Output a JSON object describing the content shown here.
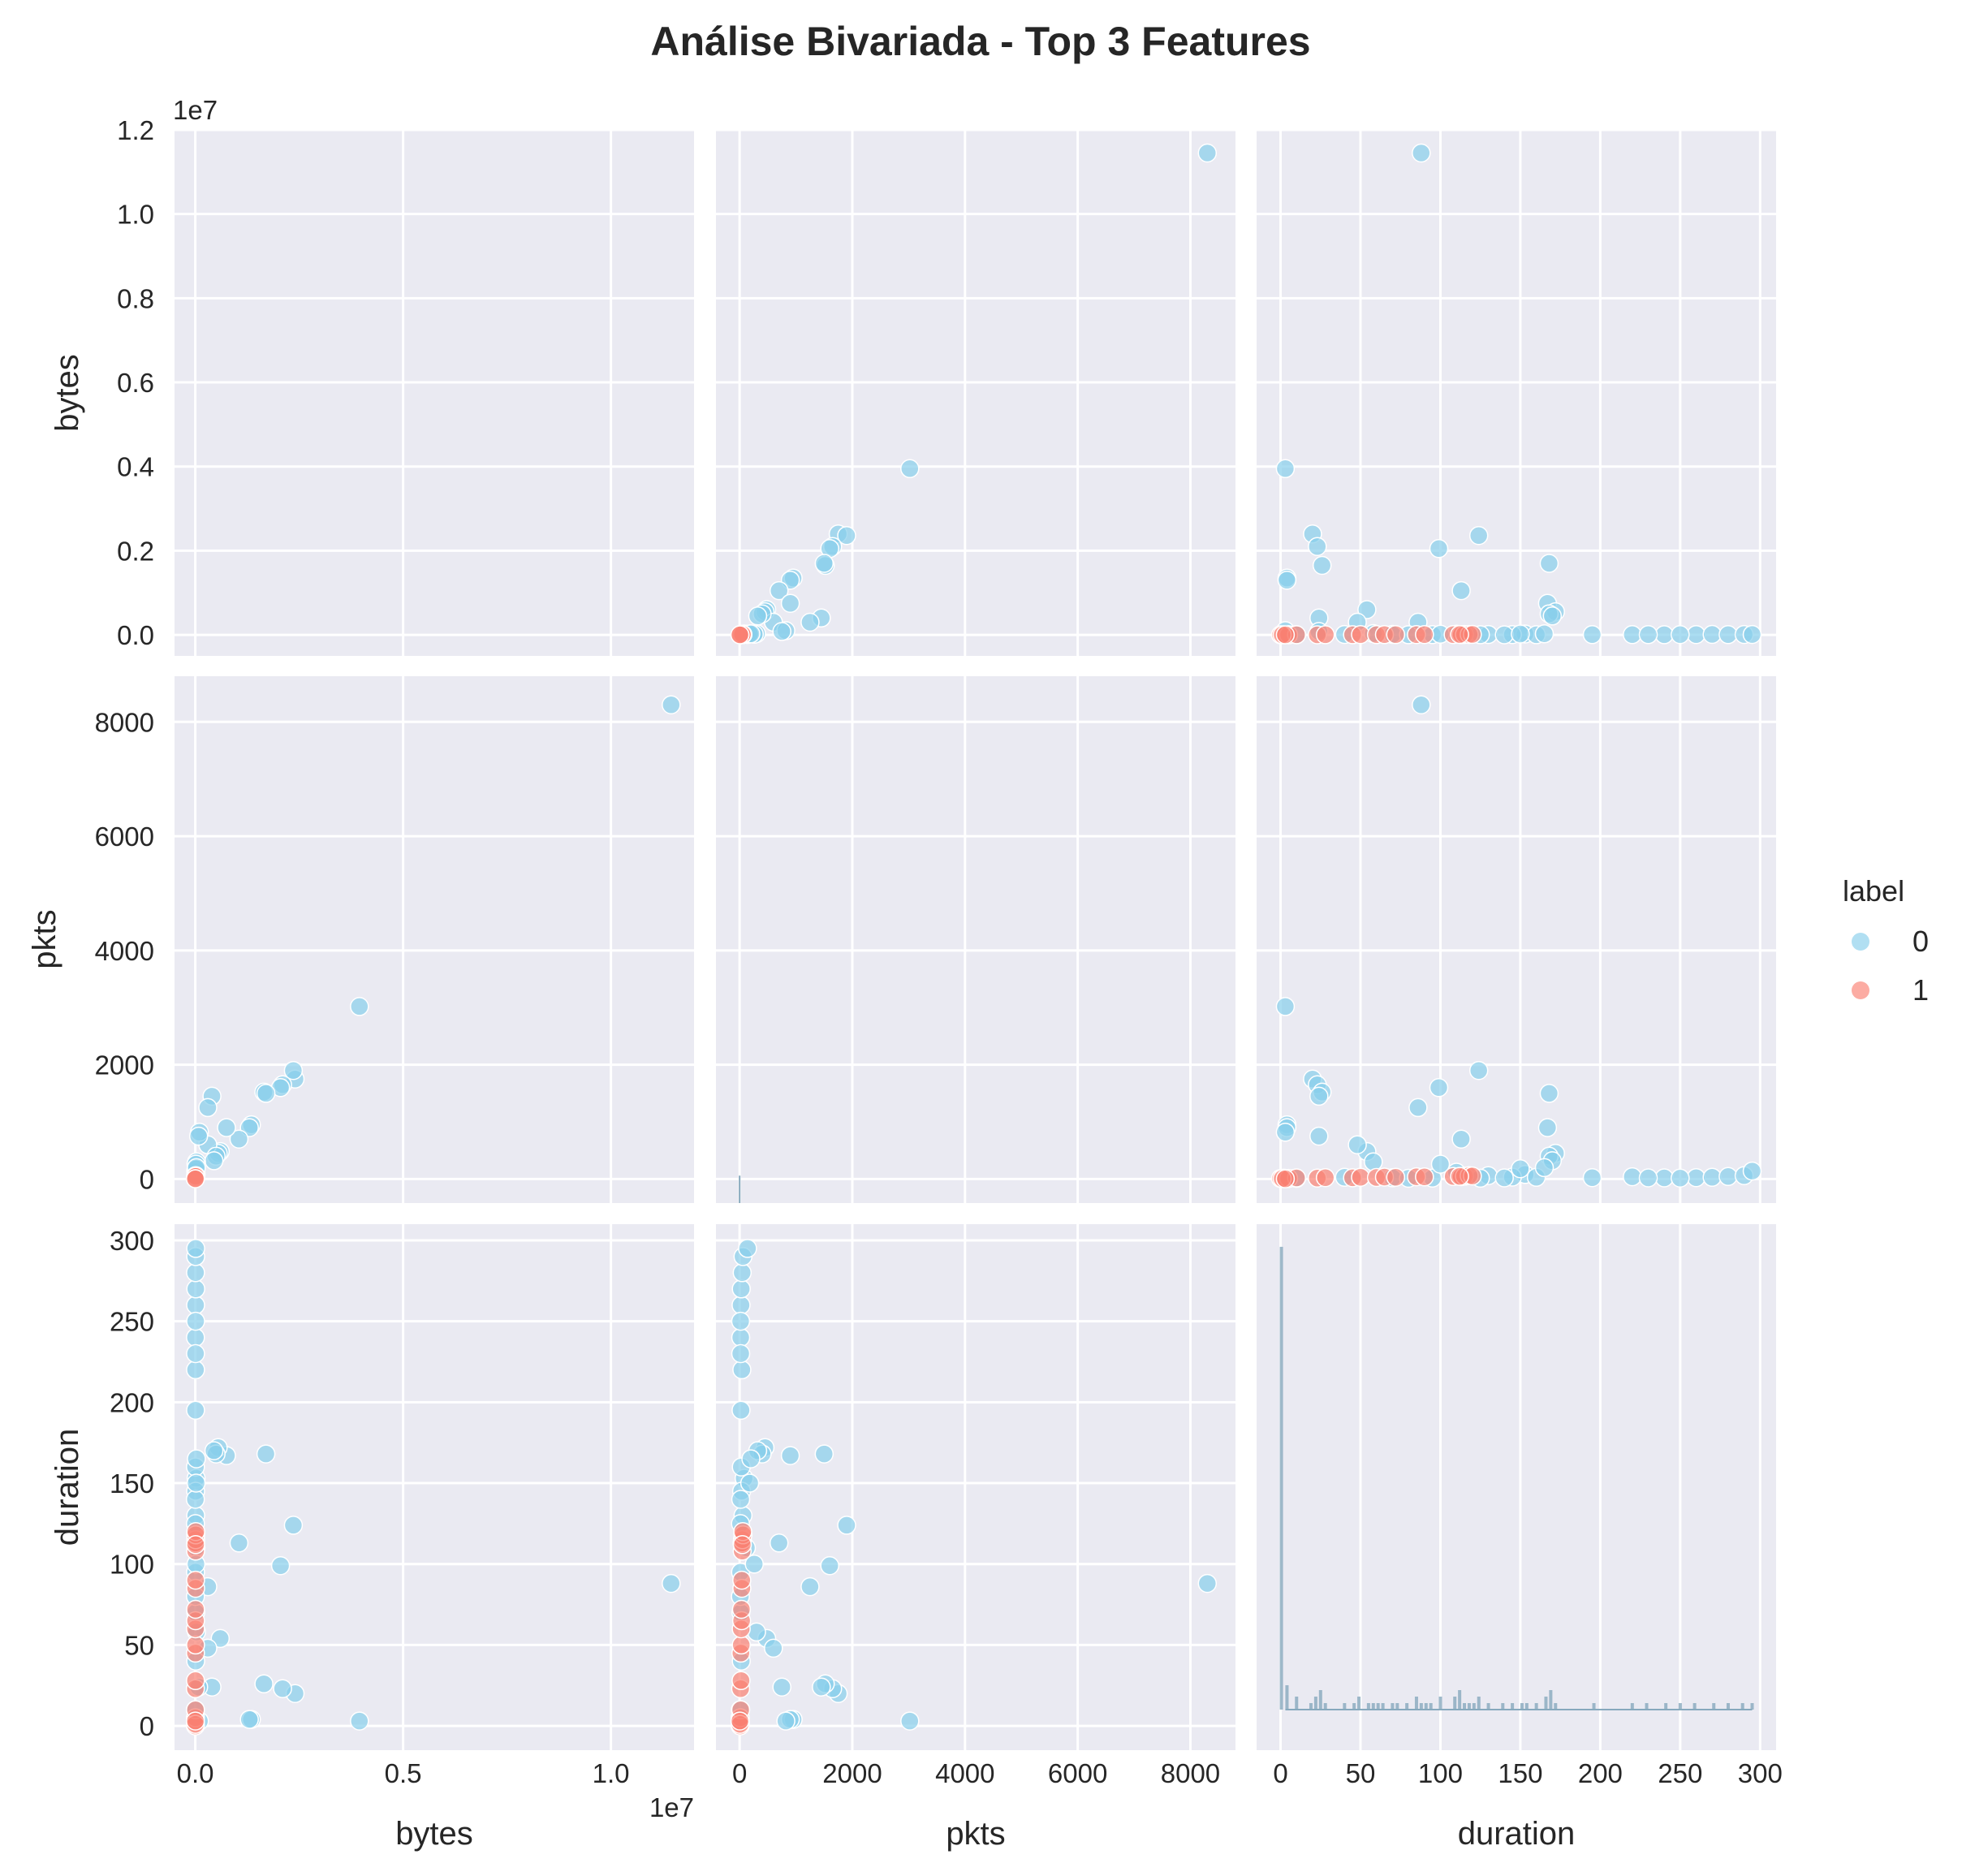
{
  "chart_data": {
    "type": "scatter",
    "title": "Análise Bivariada - Top 3 Features",
    "variables": [
      "bytes",
      "pkts",
      "duration"
    ],
    "hue": "label",
    "legend": {
      "title": "label",
      "placement": "right",
      "entries": [
        {
          "label": "0",
          "color": "#87ceeb"
        },
        {
          "label": "1",
          "color": "#fa8072"
        }
      ]
    },
    "axes": {
      "bytes": {
        "range": [
          -500000,
          12000000
        ],
        "ticks": [
          0,
          2000000,
          4000000,
          6000000,
          8000000,
          10000000,
          12000000
        ],
        "tick_labels": [
          "0.0",
          "0.2",
          "0.4",
          "0.6",
          "0.8",
          "1.0",
          "1.2"
        ],
        "x_ticks": [
          0,
          5000000,
          10000000
        ],
        "x_tick_labels": [
          "0.0",
          "0.5",
          "1.0"
        ],
        "offset": "1e7"
      },
      "pkts": {
        "range": [
          -420,
          8800
        ],
        "ticks": [
          0,
          2000,
          4000,
          6000,
          8000
        ],
        "tick_labels": [
          "0",
          "2000",
          "4000",
          "6000",
          "8000"
        ]
      },
      "duration": {
        "range": [
          -15,
          310
        ],
        "ticks": [
          0,
          50,
          100,
          150,
          200,
          250,
          300
        ],
        "tick_labels": [
          "0",
          "50",
          "100",
          "150",
          "200",
          "250",
          "300"
        ]
      }
    },
    "grid": true,
    "diagonal": "histogram",
    "series": [
      {
        "name": "0",
        "color": "#87ceeb",
        "points": [
          [
            11450000,
            8300,
            88
          ],
          [
            3950000,
            3020,
            3
          ],
          [
            2400000,
            1750,
            20
          ],
          [
            2360000,
            1900,
            124
          ],
          [
            2100000,
            1650,
            23
          ],
          [
            2050000,
            1600,
            99
          ],
          [
            1650000,
            1520,
            26
          ],
          [
            1700000,
            1500,
            168
          ],
          [
            1350000,
            950,
            4
          ],
          [
            1300000,
            900,
            4
          ],
          [
            1050000,
            700,
            113
          ],
          [
            750000,
            900,
            167
          ],
          [
            600000,
            480,
            54
          ],
          [
            550000,
            450,
            172
          ],
          [
            400000,
            1450,
            24
          ],
          [
            300000,
            600,
            48
          ],
          [
            300000,
            1250,
            86
          ],
          [
            500000,
            400,
            168
          ],
          [
            450000,
            320,
            170
          ],
          [
            100000,
            820,
            3
          ],
          [
            80000,
            750,
            24
          ],
          [
            30000,
            300,
            58
          ],
          [
            15000,
            120,
            110
          ],
          [
            20000,
            80,
            153
          ],
          [
            10000,
            60,
            130
          ],
          [
            5000,
            40,
            220
          ],
          [
            3000,
            20,
            240
          ],
          [
            8000,
            25,
            260
          ],
          [
            12000,
            30,
            270
          ],
          [
            6000,
            45,
            280
          ],
          [
            9000,
            60,
            290
          ],
          [
            10000,
            140,
            295
          ],
          [
            4000,
            30,
            160
          ],
          [
            7000,
            35,
            145
          ],
          [
            2000,
            20,
            140
          ],
          [
            3000,
            15,
            125
          ],
          [
            5000,
            25,
            195
          ],
          [
            6000,
            20,
            230
          ],
          [
            8000,
            18,
            250
          ],
          [
            4000,
            10,
            5
          ],
          [
            2000,
            12,
            10
          ],
          [
            9000,
            30,
            40
          ],
          [
            11000,
            22,
            70
          ],
          [
            3000,
            14,
            80
          ],
          [
            5000,
            16,
            95
          ],
          [
            15000,
            260,
            100
          ],
          [
            20000,
            180,
            150
          ],
          [
            25000,
            200,
            165
          ]
        ]
      },
      {
        "name": "1",
        "color": "#fa8072",
        "points": [
          [
            1000,
            10,
            0
          ],
          [
            2000,
            15,
            2
          ],
          [
            1500,
            12,
            5
          ],
          [
            3000,
            20,
            10
          ],
          [
            2500,
            18,
            23
          ],
          [
            4000,
            25,
            28
          ],
          [
            3500,
            22,
            45
          ],
          [
            5000,
            30,
            50
          ],
          [
            4500,
            28,
            60
          ],
          [
            6000,
            35,
            65
          ],
          [
            5500,
            32,
            72
          ],
          [
            7000,
            40,
            85
          ],
          [
            6500,
            38,
            90
          ],
          [
            8000,
            45,
            108
          ],
          [
            7500,
            42,
            113
          ],
          [
            9000,
            50,
            115
          ],
          [
            10000,
            60,
            118
          ],
          [
            12000,
            55,
            120
          ],
          [
            8500,
            48,
            112
          ],
          [
            2000,
            8,
            1
          ],
          [
            1000,
            5,
            3
          ]
        ]
      }
    ]
  }
}
